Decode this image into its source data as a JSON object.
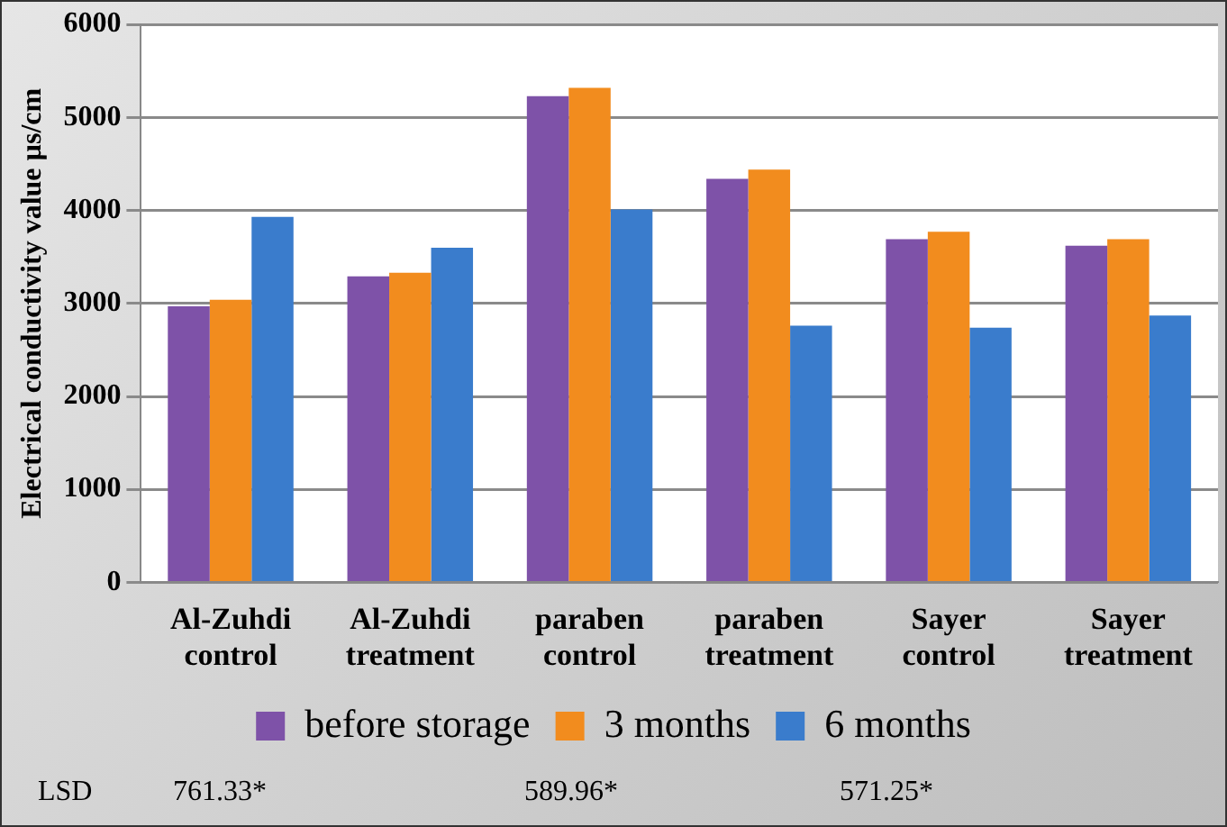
{
  "chart_data": {
    "type": "bar",
    "ylabel": "Electrical conductivity value µs/cm",
    "categories": [
      "Al-Zuhdi control",
      "Al-Zuhdi treatment",
      "paraben control",
      "paraben treatment",
      "Sayer control",
      "Sayer treatment"
    ],
    "series": [
      {
        "name": "before storage",
        "color": "#7e52a8",
        "values": [
          2970,
          3290,
          5230,
          4340,
          3690,
          3620
        ]
      },
      {
        "name": "3 months",
        "color": "#f28c1e",
        "values": [
          3040,
          3330,
          5320,
          4440,
          3770,
          3690
        ]
      },
      {
        "name": "6 months",
        "color": "#3a7ccc",
        "values": [
          3930,
          3600,
          4010,
          2760,
          2740,
          2870
        ]
      }
    ],
    "ylim": [
      0,
      6000
    ],
    "yticks": [
      0,
      1000,
      2000,
      3000,
      4000,
      5000,
      6000
    ],
    "grid": "y",
    "legend": "bottom",
    "annotations": [
      "LSD",
      "761.33*",
      "589.96*",
      "571.25*"
    ]
  }
}
